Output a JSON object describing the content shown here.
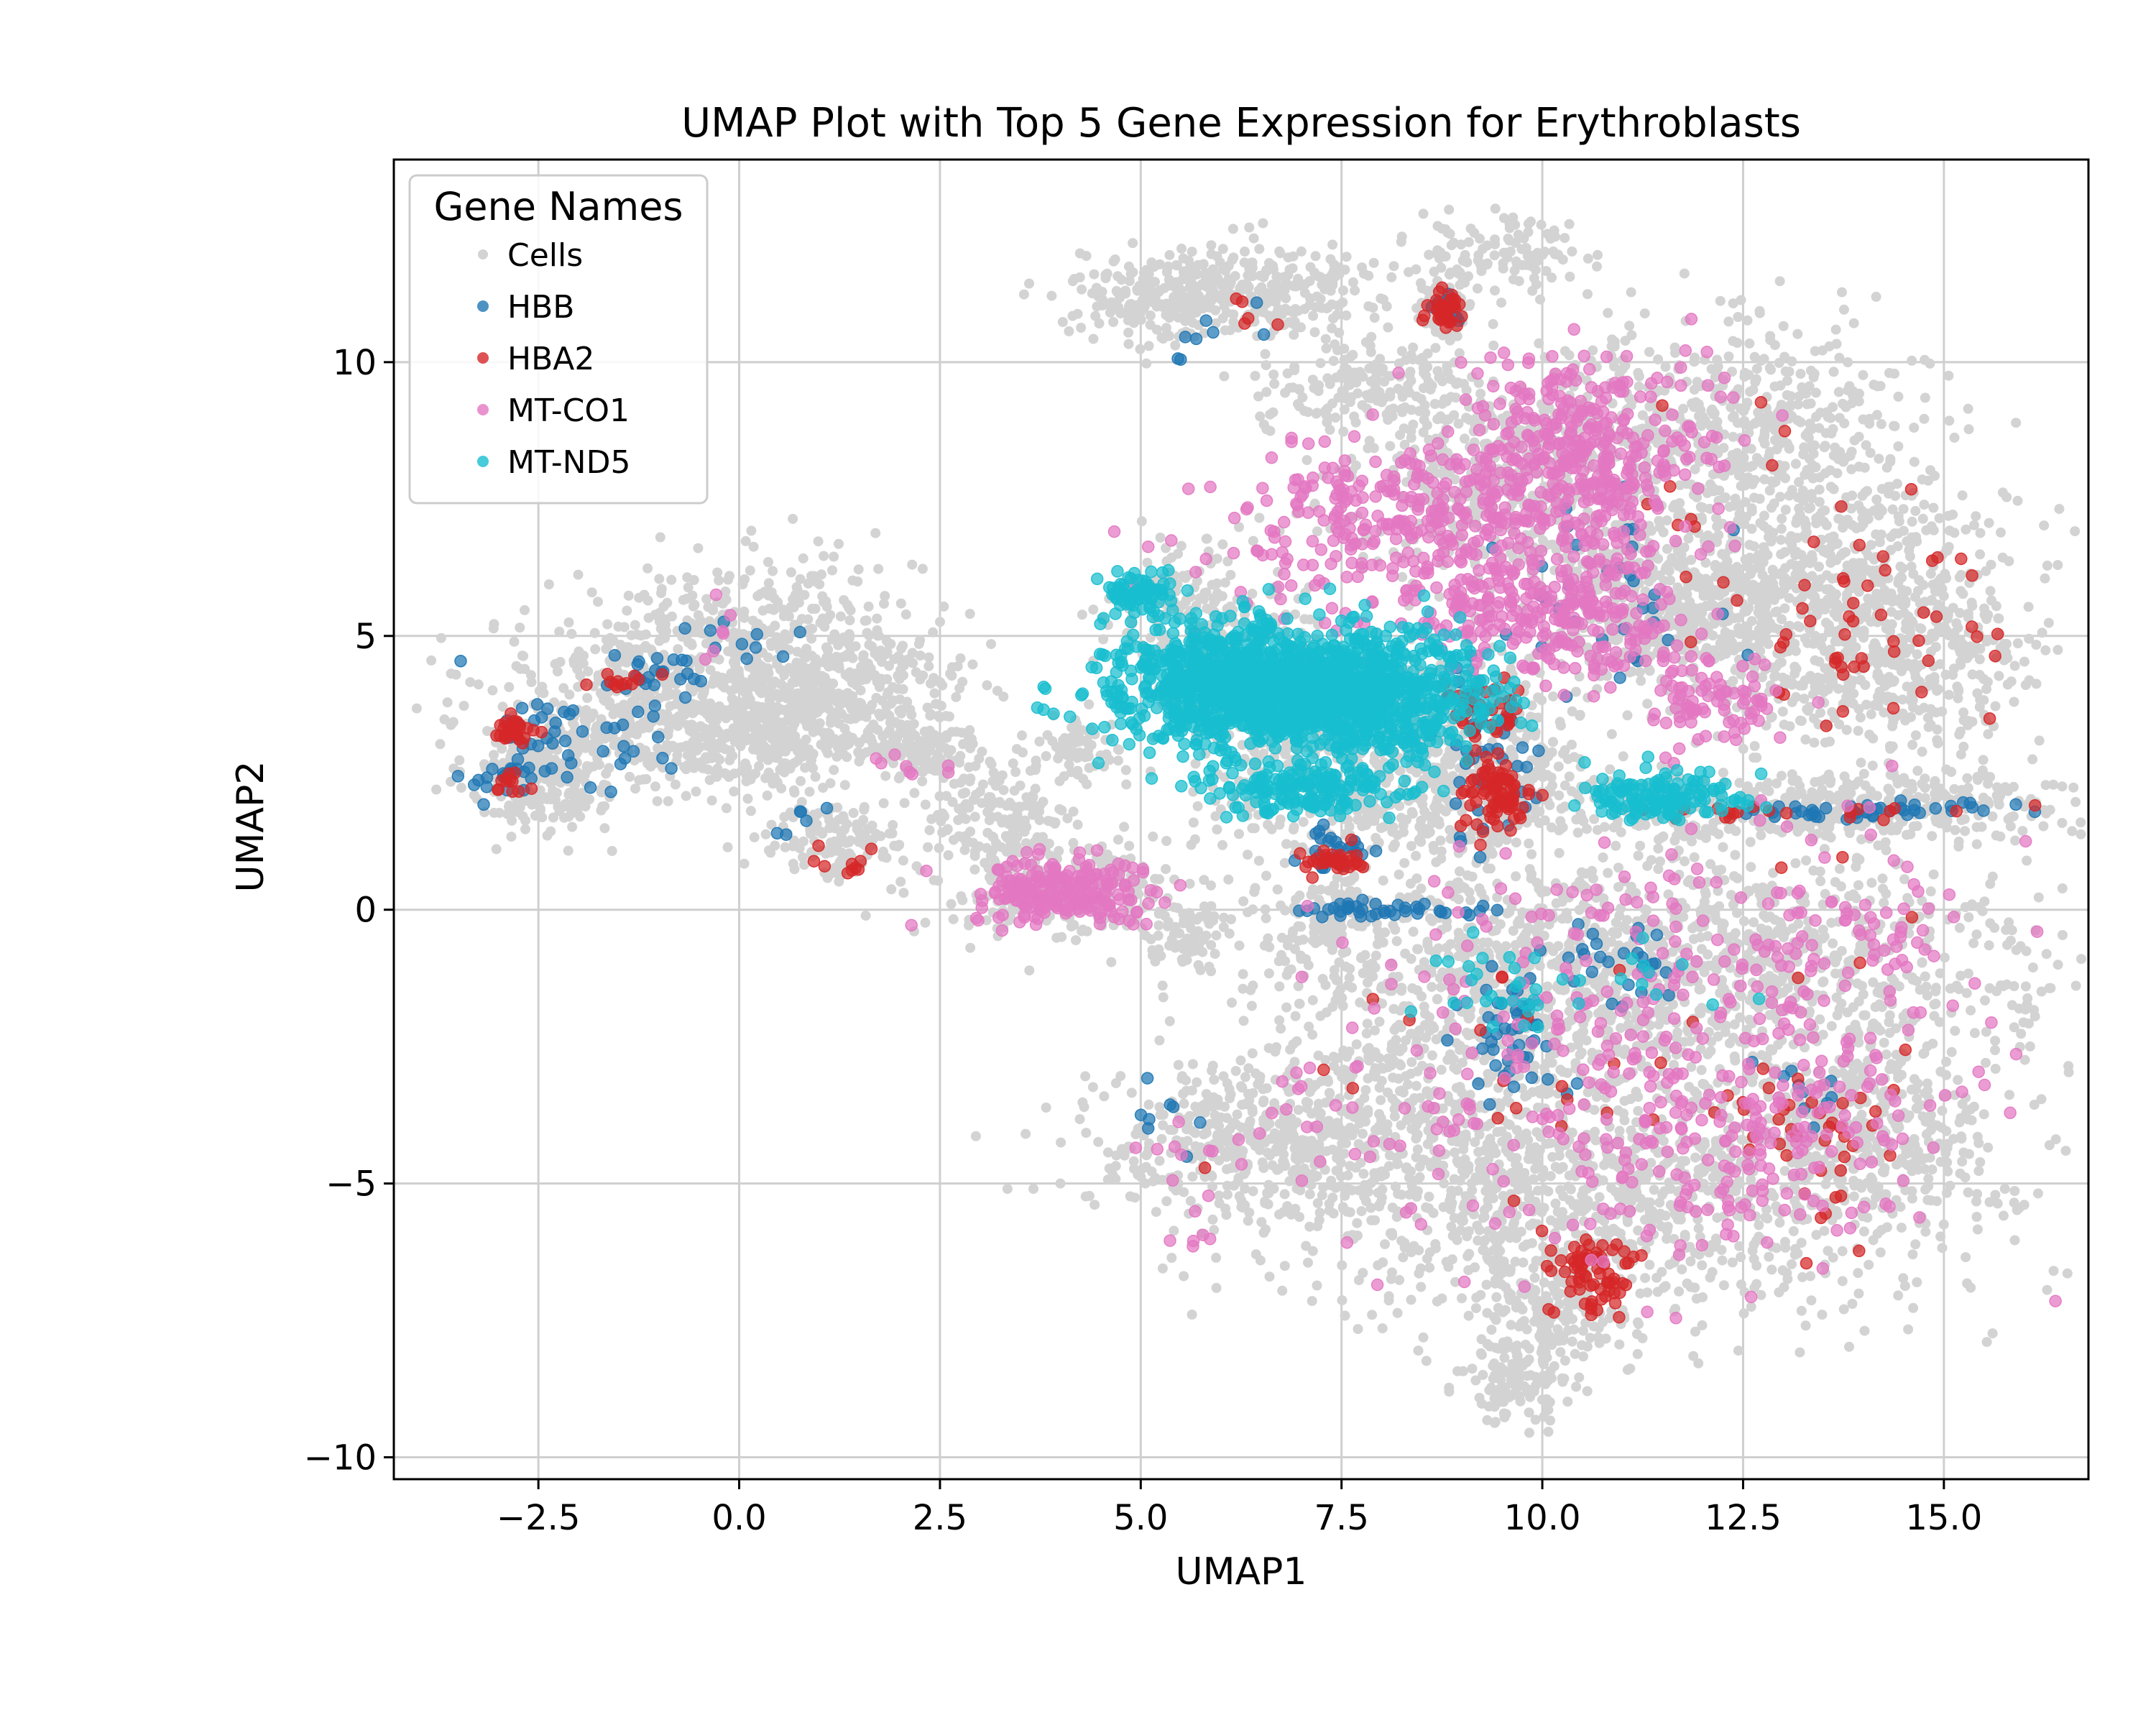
{
  "chart_data": {
    "type": "scatter",
    "title": "UMAP Plot with Top 5 Gene Expression for Erythroblasts",
    "xlabel": "UMAP1",
    "ylabel": "UMAP2",
    "xlim": [
      -4.3,
      16.8
    ],
    "ylim": [
      -10.4,
      13.7
    ],
    "xticks": [
      -2.5,
      0.0,
      2.5,
      5.0,
      7.5,
      10.0,
      12.5,
      15.0
    ],
    "xtick_labels": [
      "−2.5",
      "0.0",
      "2.5",
      "5.0",
      "7.5",
      "10.0",
      "12.5",
      "15.0"
    ],
    "yticks": [
      -10,
      -5,
      0,
      5,
      10
    ],
    "ytick_labels": [
      "−10",
      "−5",
      "0",
      "5",
      "10"
    ],
    "grid": true,
    "legend": {
      "title": "Gene Names",
      "placement": "top-left"
    },
    "series": [
      {
        "name": "Cells",
        "color": "#d3d3d3",
        "clusters": [
          {
            "cx": -2.5,
            "cy": 2.4,
            "sx": 0.45,
            "sy": 0.5,
            "n": 220
          },
          {
            "cx": -1.4,
            "cy": 3.7,
            "sx": 0.9,
            "sy": 0.8,
            "n": 380
          },
          {
            "cx": 0.3,
            "cy": 4.6,
            "sx": 1.0,
            "sy": 0.9,
            "n": 480
          },
          {
            "cx": 1.2,
            "cy": 3.9,
            "sx": 0.8,
            "sy": 0.7,
            "n": 300
          },
          {
            "cx": 0.3,
            "cy": 3.0,
            "sx": 0.6,
            "sy": 0.4,
            "n": 200
          },
          {
            "cx": 1.2,
            "cy": 1.3,
            "sx": 0.5,
            "sy": 0.35,
            "n": 120
          },
          {
            "cx": 2.3,
            "cy": 2.9,
            "sx": 0.35,
            "sy": 0.35,
            "n": 110
          },
          {
            "cx": 3.2,
            "cy": 1.6,
            "sx": 0.5,
            "sy": 0.5,
            "n": 140
          },
          {
            "cx": 4.0,
            "cy": 0.35,
            "sx": 0.8,
            "sy": 0.45,
            "n": 240
          },
          {
            "cx": 4.2,
            "cy": 2.9,
            "sx": 0.3,
            "sy": 0.3,
            "n": 70
          },
          {
            "cx": 5.8,
            "cy": 5.3,
            "sx": 0.6,
            "sy": 0.7,
            "n": 210
          },
          {
            "cx": 5.2,
            "cy": 11.2,
            "sx": 0.5,
            "sy": 0.4,
            "n": 160
          },
          {
            "cx": 6.4,
            "cy": 11.3,
            "sx": 0.8,
            "sy": 0.45,
            "n": 300
          },
          {
            "cx": 7.7,
            "cy": 9.6,
            "sx": 0.6,
            "sy": 0.4,
            "n": 150
          },
          {
            "cx": 8.8,
            "cy": 11.0,
            "sx": 0.15,
            "sy": 0.25,
            "n": 60
          },
          {
            "cx": 9.5,
            "cy": 12.0,
            "sx": 0.5,
            "sy": 0.35,
            "n": 120
          },
          {
            "cx": 9.7,
            "cy": 8.0,
            "sx": 1.1,
            "sy": 0.9,
            "n": 600
          },
          {
            "cx": 12.5,
            "cy": 8.8,
            "sx": 1.1,
            "sy": 0.9,
            "n": 520
          },
          {
            "cx": 13.5,
            "cy": 6.0,
            "sx": 1.2,
            "sy": 1.0,
            "n": 620
          },
          {
            "cx": 14.3,
            "cy": 4.4,
            "sx": 0.9,
            "sy": 0.8,
            "n": 380
          },
          {
            "cx": 11.6,
            "cy": 5.3,
            "sx": 0.9,
            "sy": 0.8,
            "n": 420
          },
          {
            "cx": 7.6,
            "cy": 2.7,
            "sx": 1.1,
            "sy": 1.0,
            "n": 560
          },
          {
            "cx": 9.3,
            "cy": 2.6,
            "sx": 0.6,
            "sy": 0.9,
            "n": 300
          },
          {
            "cx": 13.2,
            "cy": 1.9,
            "sx": 1.8,
            "sy": 0.3,
            "n": 500
          },
          {
            "cx": 12.3,
            "cy": -1.0,
            "sx": 2.0,
            "sy": 1.1,
            "n": 900
          },
          {
            "cx": 9.2,
            "cy": -1.8,
            "sx": 1.6,
            "sy": 1.3,
            "n": 700
          },
          {
            "cx": 6.6,
            "cy": -4.2,
            "sx": 1.2,
            "sy": 0.8,
            "n": 520
          },
          {
            "cx": 10.5,
            "cy": -5.3,
            "sx": 2.0,
            "sy": 1.1,
            "n": 1000
          },
          {
            "cx": 14.0,
            "cy": -4.2,
            "sx": 0.9,
            "sy": 1.1,
            "n": 450
          },
          {
            "cx": 10.2,
            "cy": -7.4,
            "sx": 0.5,
            "sy": 0.5,
            "n": 160
          },
          {
            "cx": 9.7,
            "cy": -8.6,
            "sx": 0.3,
            "sy": 0.4,
            "n": 120
          },
          {
            "cx": 7.4,
            "cy": -0.2,
            "sx": 0.4,
            "sy": 0.4,
            "n": 120
          },
          {
            "cx": 5.5,
            "cy": -0.5,
            "sx": 0.3,
            "sy": 0.35,
            "n": 60
          }
        ]
      },
      {
        "name": "HBB",
        "color": "#1f77b4",
        "clusters": [
          {
            "cx": -2.0,
            "cy": 3.2,
            "sx": 0.6,
            "sy": 0.45,
            "n": 45
          },
          {
            "cx": -1.1,
            "cy": 4.2,
            "sx": 0.4,
            "sy": 0.3,
            "n": 25
          },
          {
            "cx": -2.9,
            "cy": 2.4,
            "sx": 0.2,
            "sy": 0.15,
            "n": 20
          },
          {
            "cx": 0.2,
            "cy": 4.9,
            "sx": 0.3,
            "sy": 0.2,
            "n": 8
          },
          {
            "cx": 0.8,
            "cy": 1.5,
            "sx": 0.3,
            "sy": 0.2,
            "n": 6
          },
          {
            "cx": 6.0,
            "cy": 10.6,
            "sx": 0.4,
            "sy": 0.4,
            "n": 8
          },
          {
            "cx": 8.8,
            "cy": 11.0,
            "sx": 0.1,
            "sy": 0.2,
            "n": 10
          },
          {
            "cx": 9.3,
            "cy": 3.0,
            "sx": 0.3,
            "sy": 0.9,
            "n": 45
          },
          {
            "cx": 8.0,
            "cy": 0.0,
            "sx": 0.6,
            "sy": 0.08,
            "n": 40
          },
          {
            "cx": 7.4,
            "cy": 1.1,
            "sx": 0.25,
            "sy": 0.2,
            "n": 25
          },
          {
            "cx": 9.6,
            "cy": -2.4,
            "sx": 0.35,
            "sy": 0.7,
            "n": 45
          },
          {
            "cx": 11.0,
            "cy": -1.0,
            "sx": 0.4,
            "sy": 0.5,
            "n": 25
          },
          {
            "cx": 14.0,
            "cy": 1.8,
            "sx": 1.0,
            "sy": 0.08,
            "n": 45
          },
          {
            "cx": 10.8,
            "cy": 5.8,
            "sx": 0.8,
            "sy": 0.9,
            "n": 35
          },
          {
            "cx": 5.4,
            "cy": -4.1,
            "sx": 0.25,
            "sy": 0.3,
            "n": 8
          },
          {
            "cx": 13.2,
            "cy": -3.4,
            "sx": 0.3,
            "sy": 0.3,
            "n": 10
          }
        ]
      },
      {
        "name": "HBA2",
        "color": "#d62728",
        "clusters": [
          {
            "cx": -2.8,
            "cy": 3.25,
            "sx": 0.15,
            "sy": 0.12,
            "n": 30
          },
          {
            "cx": -2.8,
            "cy": 2.3,
            "sx": 0.15,
            "sy": 0.1,
            "n": 12
          },
          {
            "cx": -1.5,
            "cy": 4.2,
            "sx": 0.25,
            "sy": 0.08,
            "n": 12
          },
          {
            "cx": 1.3,
            "cy": 0.9,
            "sx": 0.15,
            "sy": 0.1,
            "n": 10
          },
          {
            "cx": 8.8,
            "cy": 11.0,
            "sx": 0.12,
            "sy": 0.18,
            "n": 35
          },
          {
            "cx": 9.45,
            "cy": 2.1,
            "sx": 0.22,
            "sy": 0.3,
            "n": 80
          },
          {
            "cx": 9.3,
            "cy": 3.6,
            "sx": 0.25,
            "sy": 0.3,
            "n": 40
          },
          {
            "cx": 7.4,
            "cy": 0.9,
            "sx": 0.2,
            "sy": 0.12,
            "n": 35
          },
          {
            "cx": 10.6,
            "cy": -6.6,
            "sx": 0.3,
            "sy": 0.35,
            "n": 70
          },
          {
            "cx": 13.9,
            "cy": 5.1,
            "sx": 0.8,
            "sy": 0.8,
            "n": 50
          },
          {
            "cx": 13.4,
            "cy": -4.3,
            "sx": 0.45,
            "sy": 0.9,
            "n": 35
          },
          {
            "cx": 13.0,
            "cy": 1.8,
            "sx": 1.0,
            "sy": 0.08,
            "n": 20
          },
          {
            "cx": 12.2,
            "cy": 7.6,
            "sx": 0.8,
            "sy": 0.8,
            "n": 12
          },
          {
            "cx": 10.8,
            "cy": -2.5,
            "sx": 2.0,
            "sy": 1.5,
            "n": 35
          },
          {
            "cx": 6.4,
            "cy": 11.0,
            "sx": 0.3,
            "sy": 0.2,
            "n": 5
          }
        ]
      },
      {
        "name": "MT-CO1",
        "color": "#e377c2",
        "clusters": [
          {
            "cx": 4.0,
            "cy": 0.35,
            "sx": 0.55,
            "sy": 0.3,
            "n": 220
          },
          {
            "cx": 10.4,
            "cy": 8.2,
            "sx": 0.8,
            "sy": 0.9,
            "n": 420
          },
          {
            "cx": 8.3,
            "cy": 6.9,
            "sx": 1.2,
            "sy": 0.8,
            "n": 320
          },
          {
            "cx": 10.1,
            "cy": 5.4,
            "sx": 0.8,
            "sy": 0.6,
            "n": 260
          },
          {
            "cx": 12.0,
            "cy": 3.8,
            "sx": 0.5,
            "sy": 0.4,
            "n": 90
          },
          {
            "cx": 11.5,
            "cy": -2.5,
            "sx": 1.8,
            "sy": 2.2,
            "n": 380
          },
          {
            "cx": 13.8,
            "cy": -1.0,
            "sx": 1.0,
            "sy": 1.0,
            "n": 60
          },
          {
            "cx": 12.5,
            "cy": -4.5,
            "sx": 0.8,
            "sy": 0.7,
            "n": 80
          },
          {
            "cx": 7.8,
            "cy": -3.5,
            "sx": 1.0,
            "sy": 0.8,
            "n": 30
          },
          {
            "cx": 5.7,
            "cy": -5.0,
            "sx": 0.6,
            "sy": 1.0,
            "n": 15
          },
          {
            "cx": 2.0,
            "cy": 2.6,
            "sx": 0.3,
            "sy": 0.2,
            "n": 8
          },
          {
            "cx": -0.2,
            "cy": 5.2,
            "sx": 0.3,
            "sy": 0.3,
            "n": 6
          }
        ]
      },
      {
        "name": "MT-ND5",
        "color": "#17becf",
        "clusters": [
          {
            "cx": 6.4,
            "cy": 4.1,
            "sx": 0.9,
            "sy": 0.55,
            "n": 1100
          },
          {
            "cx": 7.8,
            "cy": 3.8,
            "sx": 0.8,
            "sy": 0.6,
            "n": 600
          },
          {
            "cx": 5.0,
            "cy": 5.8,
            "sx": 0.2,
            "sy": 0.22,
            "n": 70
          },
          {
            "cx": 7.0,
            "cy": 2.2,
            "sx": 0.6,
            "sy": 0.25,
            "n": 180
          },
          {
            "cx": 11.5,
            "cy": 2.1,
            "sx": 0.5,
            "sy": 0.22,
            "n": 140
          },
          {
            "cx": 9.6,
            "cy": -1.5,
            "sx": 0.5,
            "sy": 0.5,
            "n": 30
          },
          {
            "cx": 11.4,
            "cy": -1.0,
            "sx": 0.5,
            "sy": 0.5,
            "n": 10
          }
        ]
      }
    ]
  }
}
